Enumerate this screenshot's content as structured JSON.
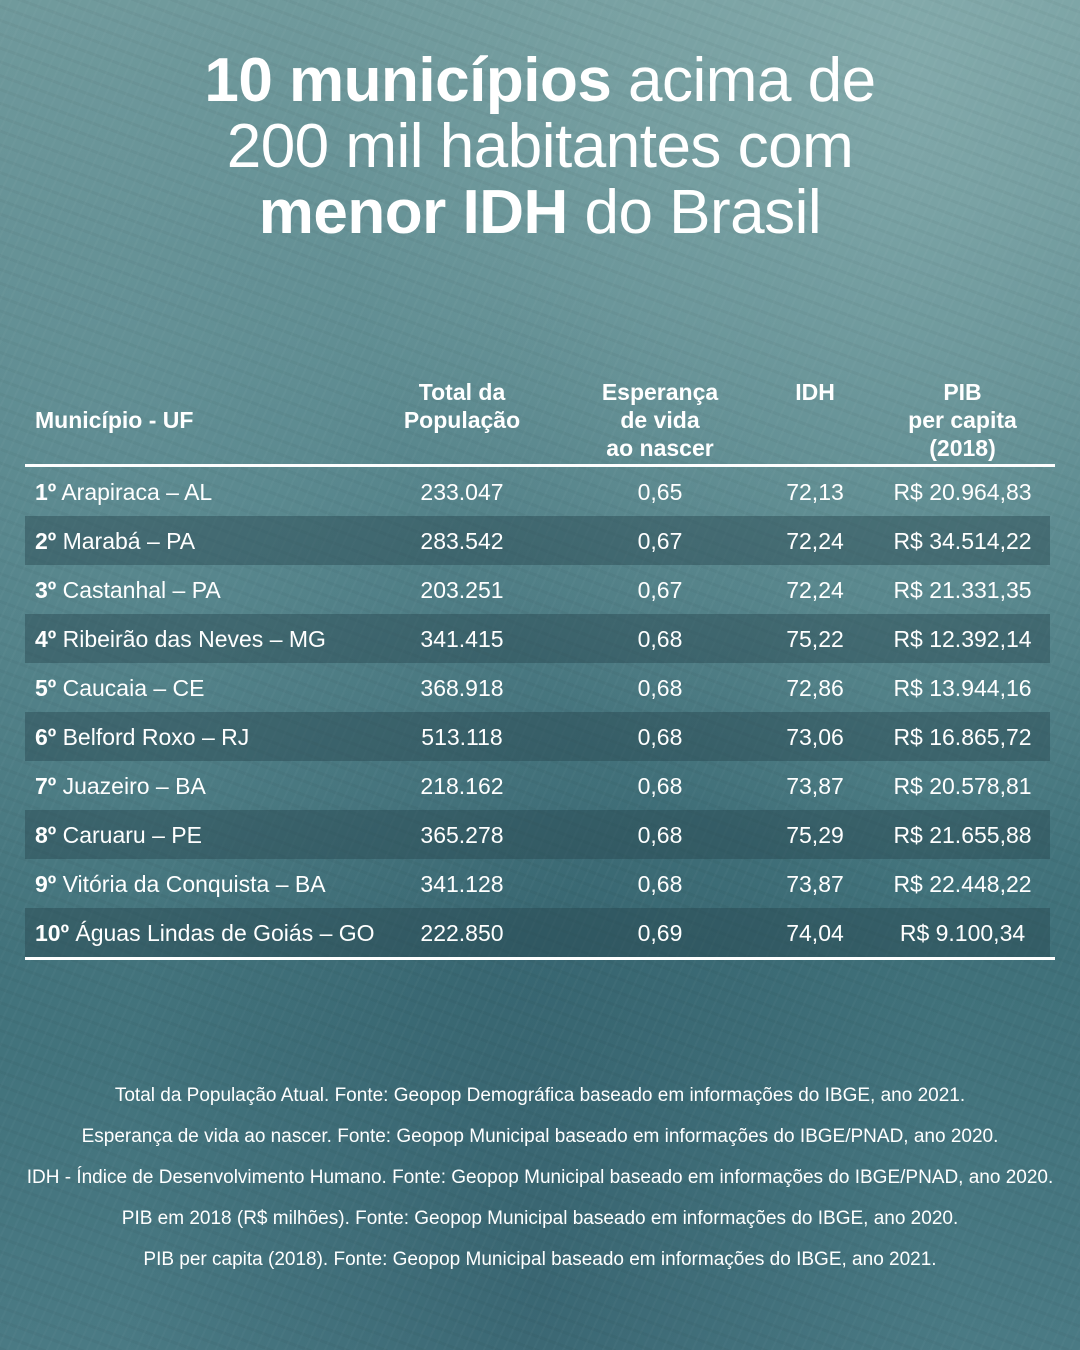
{
  "title": {
    "line1_bold": "10 municípios",
    "line1_rest": " acima de",
    "line2": "200 mil habitantes com",
    "line3_bold": "menor IDH",
    "line3_rest": " do Brasil"
  },
  "chart_data": {
    "type": "table",
    "columns": [
      "Município - UF",
      "Total da População",
      "Esperança de vida ao nascer",
      "IDH",
      "PIB per capita (2018)"
    ],
    "header_lines": {
      "municipio": [
        "Município - UF"
      ],
      "populacao": [
        "Total da",
        "População"
      ],
      "esperanca": [
        "Esperança",
        "de vida",
        "ao nascer"
      ],
      "idh": [
        "IDH"
      ],
      "pib": [
        "PIB",
        "per capita",
        "(2018)"
      ]
    },
    "rows": [
      {
        "rank": "1º",
        "municipio": "Arapiraca – AL",
        "populacao": "233.047",
        "esperanca": "0,65",
        "idh": "72,13",
        "pib": "R$  20.964,83"
      },
      {
        "rank": "2º",
        "municipio": "Marabá – PA",
        "populacao": "283.542",
        "esperanca": "0,67",
        "idh": "72,24",
        "pib": "R$  34.514,22"
      },
      {
        "rank": "3º",
        "municipio": "Castanhal – PA",
        "populacao": "203.251",
        "esperanca": "0,67",
        "idh": "72,24",
        "pib": "R$  21.331,35"
      },
      {
        "rank": "4º",
        "municipio": "Ribeirão das Neves – MG",
        "populacao": "341.415",
        "esperanca": "0,68",
        "idh": "75,22",
        "pib": "R$  12.392,14"
      },
      {
        "rank": "5º",
        "municipio": "Caucaia – CE",
        "populacao": "368.918",
        "esperanca": "0,68",
        "idh": "72,86",
        "pib": "R$  13.944,16"
      },
      {
        "rank": "6º",
        "municipio": "Belford Roxo – RJ",
        "populacao": "513.118",
        "esperanca": "0,68",
        "idh": "73,06",
        "pib": "R$  16.865,72"
      },
      {
        "rank": "7º",
        "municipio": "Juazeiro – BA",
        "populacao": "218.162",
        "esperanca": "0,68",
        "idh": "73,87",
        "pib": "R$  20.578,81"
      },
      {
        "rank": "8º",
        "municipio": "Caruaru – PE",
        "populacao": "365.278",
        "esperanca": "0,68",
        "idh": "75,29",
        "pib": "R$  21.655,88"
      },
      {
        "rank": "9º",
        "municipio": "Vitória da Conquista – BA",
        "populacao": "341.128",
        "esperanca": "0,68",
        "idh": "73,87",
        "pib": "R$  22.448,22"
      },
      {
        "rank": "10º",
        "municipio": "Águas Lindas de Goiás – GO",
        "populacao": "222.850",
        "esperanca": "0,69",
        "idh": "74,04",
        "pib": "R$  9.100,34"
      }
    ]
  },
  "notes": [
    "Total da População Atual. Fonte: Geopop Demográfica baseado em informações do IBGE, ano 2021.",
    "Esperança de vida ao nascer. Fonte: Geopop Municipal baseado em informações do IBGE/PNAD, ano 2020.",
    "IDH - Índice de Desenvolvimento Humano. Fonte: Geopop Municipal baseado em informações do IBGE/PNAD, ano 2020.",
    "PIB em 2018 (R$ milhões). Fonte: Geopop Municipal baseado em informações do IBGE, ano 2020.",
    "PIB per capita (2018). Fonte: Geopop Municipal baseado em informações do IBGE, ano 2021."
  ]
}
